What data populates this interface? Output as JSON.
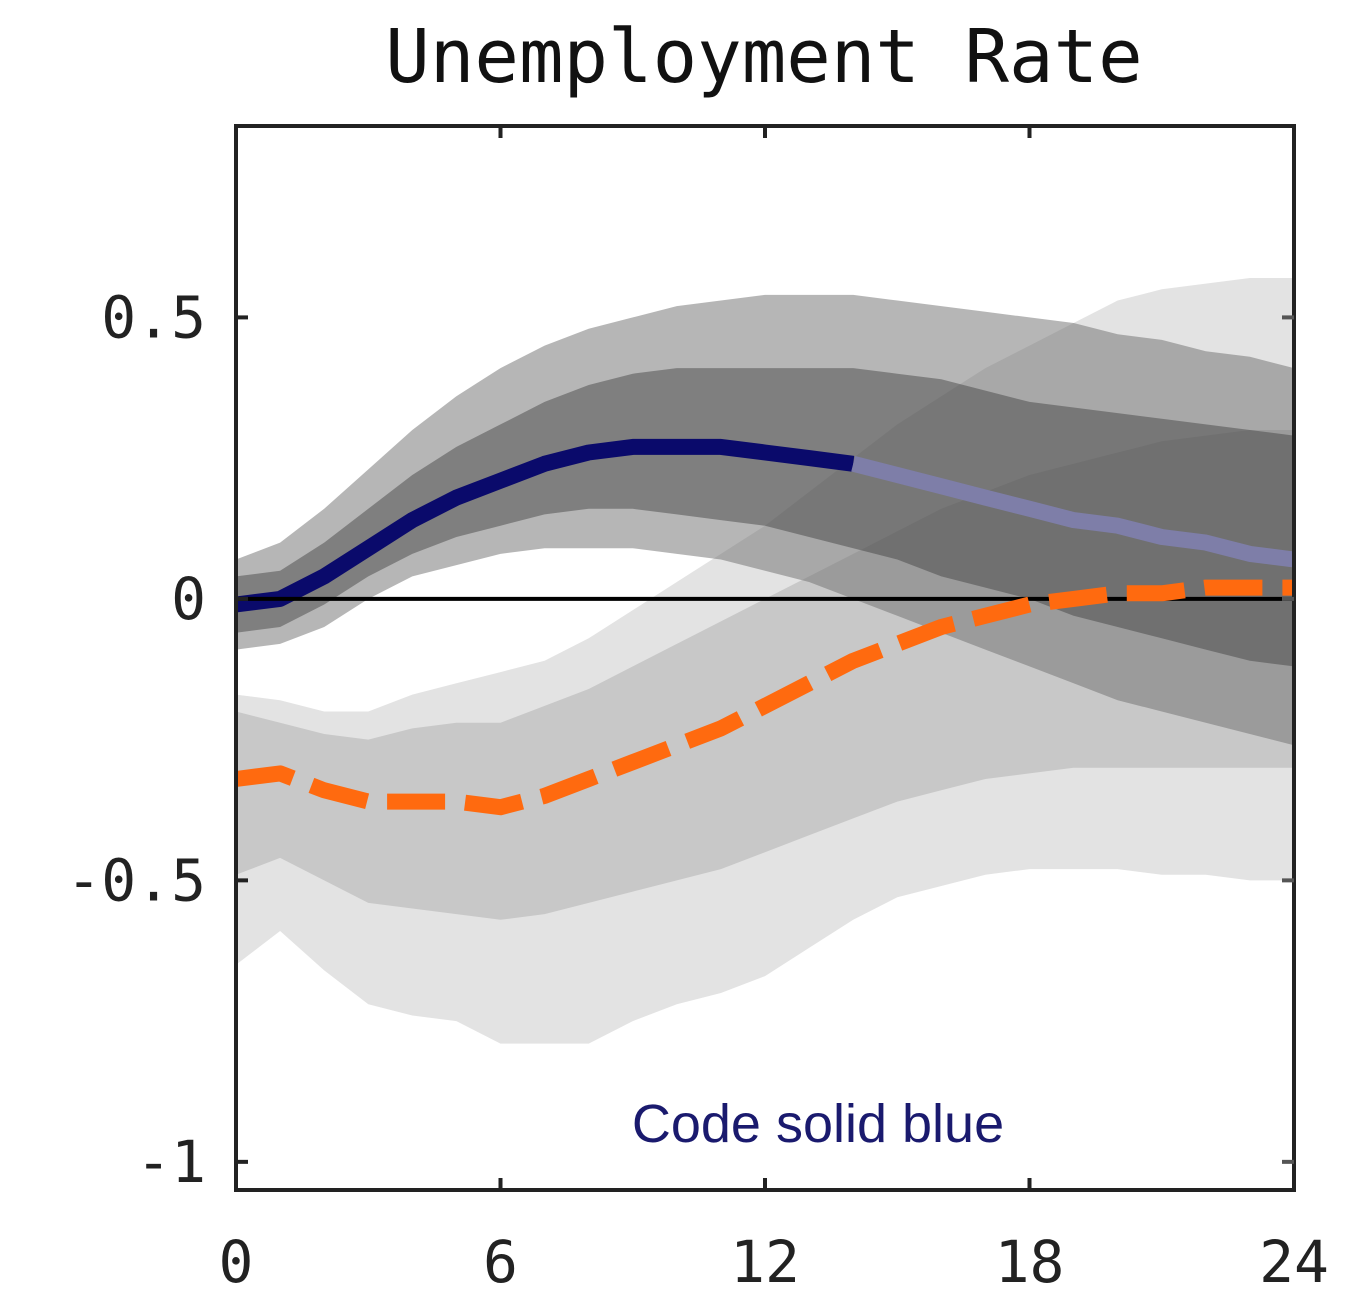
{
  "chart_data": {
    "type": "line",
    "title": "Unemployment Rate",
    "xlim": [
      0,
      24
    ],
    "ylim": [
      -1.05,
      0.84
    ],
    "xticks": [
      0,
      6,
      12,
      18,
      24
    ],
    "xtick_labels": [
      "0",
      "6",
      "12",
      "18",
      "24"
    ],
    "yticks": [
      -1,
      -0.5,
      0,
      0.5
    ],
    "ytick_labels": [
      "-1",
      "-0.5",
      "0",
      "0.5"
    ],
    "zero_line": true,
    "grid": false,
    "annotation": "Code solid blue",
    "colors": {
      "blue_line": "#0a0a6b",
      "orange_line": "#ff6a0f",
      "band_dark": "#7a7a7a",
      "band_mid": "#a6a6a6",
      "band_light_outer": "#e3e3e3",
      "band_light_inner": "#c8c8c8",
      "axis": "#222222"
    },
    "x": [
      0,
      1,
      2,
      3,
      4,
      5,
      6,
      7,
      8,
      9,
      10,
      11,
      12,
      13,
      14,
      15,
      16,
      17,
      18,
      19,
      20,
      21,
      22,
      23,
      24
    ],
    "series": [
      {
        "role": "blue solid line",
        "values": [
          -0.01,
          0.0,
          0.04,
          0.09,
          0.14,
          0.18,
          0.21,
          0.24,
          0.26,
          0.27,
          0.27,
          0.27,
          0.26,
          0.25,
          0.24,
          0.22,
          0.2,
          0.18,
          0.16,
          0.14,
          0.13,
          0.11,
          0.1,
          0.08,
          0.07
        ],
        "band_inner_lower": [
          -0.06,
          -0.05,
          -0.01,
          0.04,
          0.08,
          0.11,
          0.13,
          0.15,
          0.16,
          0.16,
          0.15,
          0.14,
          0.13,
          0.11,
          0.09,
          0.07,
          0.04,
          0.02,
          0.0,
          -0.03,
          -0.05,
          -0.07,
          -0.09,
          -0.11,
          -0.12
        ],
        "band_inner_upper": [
          0.04,
          0.05,
          0.1,
          0.16,
          0.22,
          0.27,
          0.31,
          0.35,
          0.38,
          0.4,
          0.41,
          0.41,
          0.41,
          0.41,
          0.41,
          0.4,
          0.39,
          0.37,
          0.35,
          0.34,
          0.33,
          0.32,
          0.31,
          0.3,
          0.29
        ],
        "band_outer_lower": [
          -0.09,
          -0.08,
          -0.05,
          0.0,
          0.04,
          0.06,
          0.08,
          0.09,
          0.09,
          0.09,
          0.08,
          0.07,
          0.05,
          0.03,
          0.0,
          -0.03,
          -0.06,
          -0.09,
          -0.12,
          -0.15,
          -0.18,
          -0.2,
          -0.22,
          -0.24,
          -0.26
        ],
        "band_outer_upper": [
          0.07,
          0.1,
          0.16,
          0.23,
          0.3,
          0.36,
          0.41,
          0.45,
          0.48,
          0.5,
          0.52,
          0.53,
          0.54,
          0.54,
          0.54,
          0.53,
          0.52,
          0.51,
          0.5,
          0.49,
          0.47,
          0.46,
          0.44,
          0.43,
          0.41
        ]
      },
      {
        "role": "orange dashed line",
        "values": [
          -0.32,
          -0.31,
          -0.34,
          -0.36,
          -0.36,
          -0.36,
          -0.37,
          -0.35,
          -0.32,
          -0.29,
          -0.26,
          -0.23,
          -0.19,
          -0.15,
          -0.11,
          -0.08,
          -0.05,
          -0.03,
          -0.01,
          0.0,
          0.01,
          0.01,
          0.02,
          0.02,
          0.02
        ],
        "band_inner_lower": [
          -0.49,
          -0.46,
          -0.5,
          -0.54,
          -0.55,
          -0.56,
          -0.57,
          -0.56,
          -0.54,
          -0.52,
          -0.5,
          -0.48,
          -0.45,
          -0.42,
          -0.39,
          -0.36,
          -0.34,
          -0.32,
          -0.31,
          -0.3,
          -0.3,
          -0.3,
          -0.3,
          -0.3,
          -0.3
        ],
        "band_inner_upper": [
          -0.2,
          -0.22,
          -0.24,
          -0.25,
          -0.23,
          -0.22,
          -0.22,
          -0.19,
          -0.16,
          -0.12,
          -0.08,
          -0.04,
          0.0,
          0.04,
          0.08,
          0.12,
          0.16,
          0.19,
          0.22,
          0.24,
          0.26,
          0.28,
          0.29,
          0.3,
          0.3
        ],
        "band_outer_lower": [
          -0.65,
          -0.59,
          -0.66,
          -0.72,
          -0.74,
          -0.75,
          -0.79,
          -0.79,
          -0.79,
          -0.75,
          -0.72,
          -0.7,
          -0.67,
          -0.62,
          -0.57,
          -0.53,
          -0.51,
          -0.49,
          -0.48,
          -0.48,
          -0.48,
          -0.49,
          -0.49,
          -0.5,
          -0.5
        ],
        "band_outer_upper": [
          -0.17,
          -0.18,
          -0.2,
          -0.2,
          -0.17,
          -0.15,
          -0.13,
          -0.11,
          -0.07,
          -0.02,
          0.03,
          0.08,
          0.13,
          0.19,
          0.25,
          0.31,
          0.36,
          0.41,
          0.45,
          0.49,
          0.53,
          0.55,
          0.56,
          0.57,
          0.57
        ]
      }
    ]
  }
}
